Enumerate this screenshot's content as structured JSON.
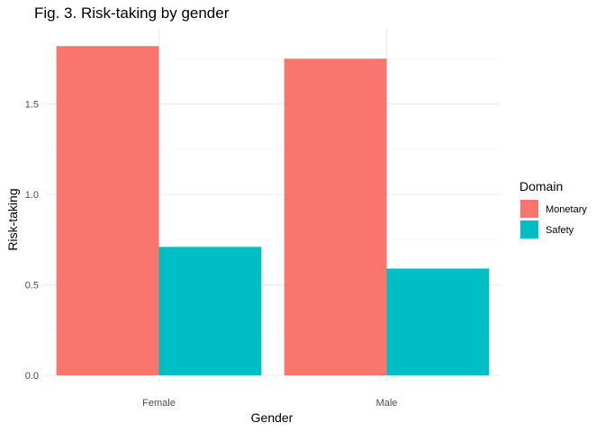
{
  "chart_data": {
    "type": "bar",
    "title": "Fig. 3. Risk-taking by gender",
    "xlabel": "Gender",
    "ylabel": "Risk-taking",
    "categories": [
      "Female",
      "Male"
    ],
    "series": [
      {
        "name": "Monetary",
        "values": [
          1.82,
          1.75
        ],
        "color": "#F8766D"
      },
      {
        "name": "Safety",
        "values": [
          0.71,
          0.59
        ],
        "color": "#00BFC4"
      }
    ],
    "ylim": [
      0,
      1.82
    ],
    "yticks": [
      0.0,
      0.5,
      1.0,
      1.5
    ],
    "ytick_labels": [
      "0.0",
      "0.5",
      "1.0",
      "1.5"
    ],
    "grid": true,
    "legend": {
      "title": "Domain",
      "position": "right"
    }
  }
}
